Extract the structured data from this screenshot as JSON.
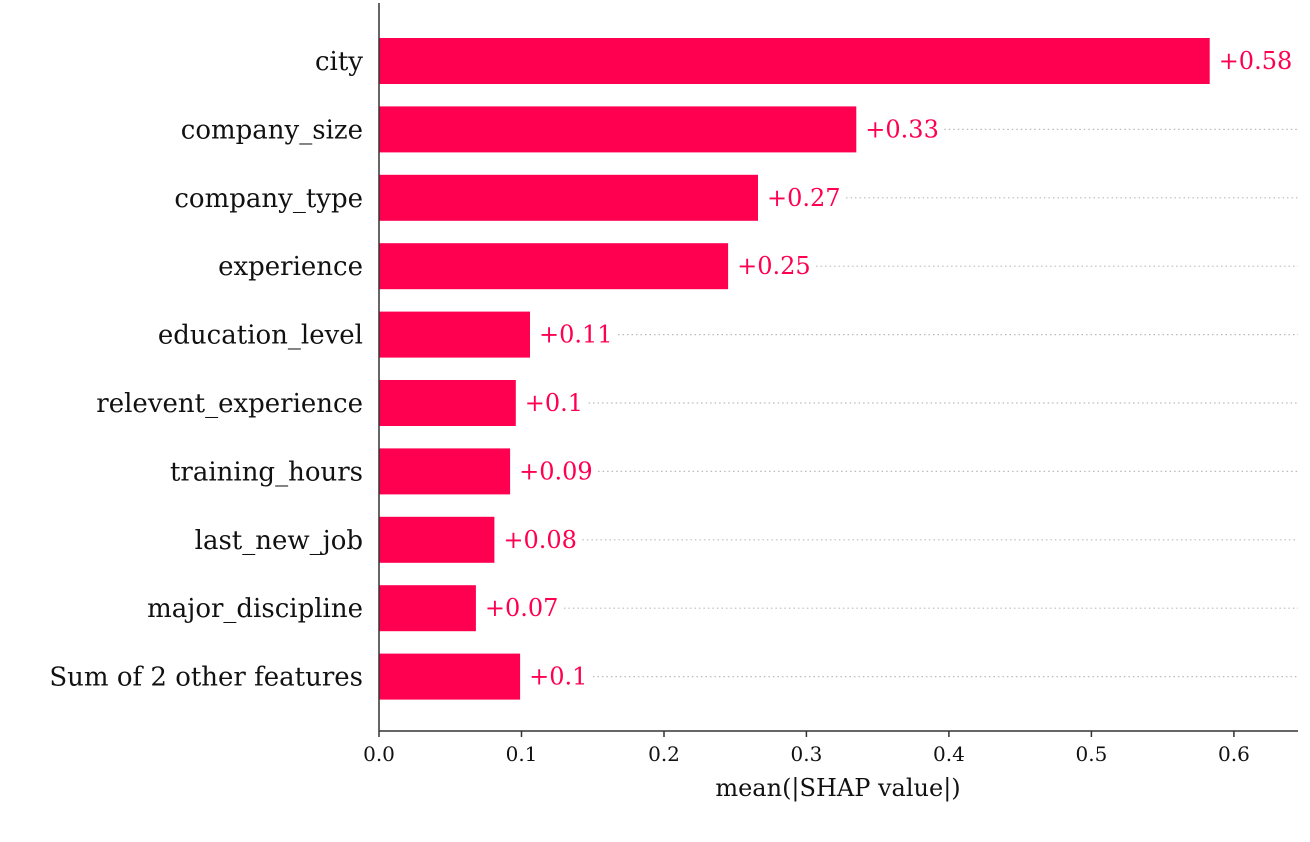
{
  "chart_data": {
    "type": "bar",
    "orientation": "horizontal",
    "categories": [
      "city",
      "company_size",
      "company_type",
      "experience",
      "education_level",
      "relevent_experience",
      "training_hours",
      "last_new_job",
      "major_discipline",
      "Sum of 2 other features"
    ],
    "values": [
      0.583,
      0.335,
      0.266,
      0.245,
      0.106,
      0.096,
      0.092,
      0.081,
      0.068,
      0.099
    ],
    "value_labels": [
      "+0.58",
      "+0.33",
      "+0.27",
      "+0.25",
      "+0.11",
      "+0.1",
      "+0.09",
      "+0.08",
      "+0.07",
      "+0.1"
    ],
    "xlabel": "mean(|SHAP value|)",
    "xlim": [
      0,
      0.645
    ],
    "xticks": [
      0.0,
      0.1,
      0.2,
      0.3,
      0.4,
      0.5,
      0.6
    ],
    "xtick_labels": [
      "0.0",
      "0.1",
      "0.2",
      "0.3",
      "0.4",
      "0.5",
      "0.6"
    ],
    "grid": "dotted row guides",
    "color": "#ff0051"
  }
}
